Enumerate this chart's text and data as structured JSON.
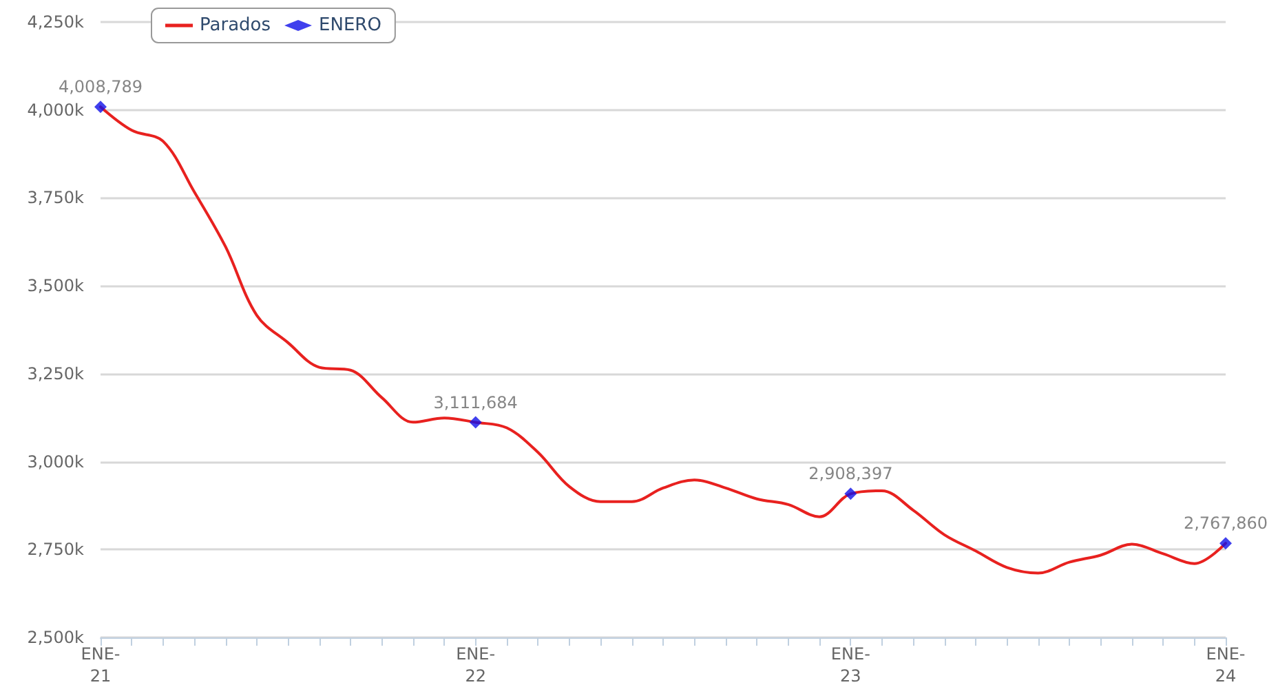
{
  "chart_data": {
    "type": "line",
    "categories": [
      "ENE-21",
      null,
      null,
      null,
      null,
      null,
      null,
      null,
      null,
      null,
      null,
      null,
      "ENE-22",
      null,
      null,
      null,
      null,
      null,
      null,
      null,
      null,
      null,
      null,
      null,
      "ENE-23",
      null,
      null,
      null,
      null,
      null,
      null,
      null,
      null,
      null,
      null,
      null,
      "ENE-24"
    ],
    "series": [
      {
        "name": "Parados",
        "color": "#e8211f",
        "marker": "none",
        "values": [
          4008789,
          3942000,
          3911000,
          3767000,
          3611000,
          3416000,
          3338000,
          3268000,
          3260000,
          3182000,
          3112000,
          3124000,
          3111684,
          3096000,
          3026000,
          2929000,
          2886000,
          2886000,
          2925000,
          2948000,
          2925000,
          2894000,
          2878000,
          2843000,
          2908397,
          2917000,
          2862000,
          2792000,
          2746000,
          2699000,
          2683000,
          2714000,
          2734000,
          2765000,
          2738000,
          2710000,
          2767860
        ]
      },
      {
        "name": "ENERO",
        "type": "scatter",
        "color": "#1010e8",
        "marker": "diamond",
        "values": [
          4008789,
          null,
          null,
          null,
          null,
          null,
          null,
          null,
          null,
          null,
          null,
          null,
          3111684,
          null,
          null,
          null,
          null,
          null,
          null,
          null,
          null,
          null,
          null,
          null,
          2908397,
          null,
          null,
          null,
          null,
          null,
          null,
          null,
          null,
          null,
          null,
          null,
          2767860
        ],
        "value_labels": [
          "4,008,789",
          null,
          null,
          null,
          null,
          null,
          null,
          null,
          null,
          null,
          null,
          null,
          "3,111,684",
          null,
          null,
          null,
          null,
          null,
          null,
          null,
          null,
          null,
          null,
          null,
          "2,908,397",
          null,
          null,
          null,
          null,
          null,
          null,
          null,
          null,
          null,
          null,
          null,
          "2,767,860"
        ]
      }
    ],
    "ylim": [
      2500000,
      4250000
    ],
    "yticks": [
      {
        "value": 2500000,
        "label": "2,500k"
      },
      {
        "value": 2750000,
        "label": "2,750k"
      },
      {
        "value": 3000000,
        "label": "3,000k"
      },
      {
        "value": 3250000,
        "label": "3,250k"
      },
      {
        "value": 3500000,
        "label": "3,500k"
      },
      {
        "value": 3750000,
        "label": "3,750k"
      },
      {
        "value": 4000000,
        "label": "4,000k"
      },
      {
        "value": 4250000,
        "label": "4,250k"
      }
    ],
    "grid": "y",
    "legend": "top left",
    "line_style": "solid"
  }
}
